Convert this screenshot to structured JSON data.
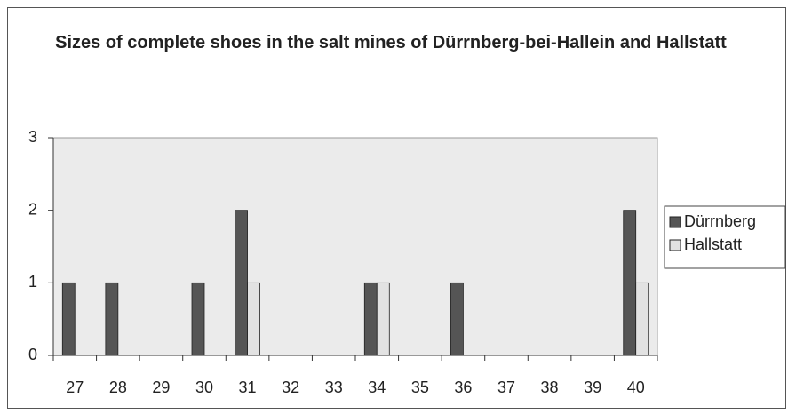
{
  "chart_data": {
    "type": "bar",
    "title": "Sizes of complete shoes in the salt mines of Dürrnberg-bei-Hallein and Hallstatt",
    "categories": [
      "27",
      "28",
      "29",
      "30",
      "31",
      "32",
      "33",
      "34",
      "35",
      "36",
      "37",
      "38",
      "39",
      "40"
    ],
    "series": [
      {
        "name": "Dürrnberg",
        "color": "#555555",
        "values": [
          1,
          1,
          0,
          1,
          2,
          0,
          0,
          1,
          0,
          1,
          0,
          0,
          0,
          2
        ]
      },
      {
        "name": "Hallstatt",
        "color": "#e2e2e2",
        "values": [
          0,
          0,
          0,
          0,
          1,
          0,
          0,
          1,
          0,
          0,
          0,
          0,
          0,
          1
        ]
      }
    ],
    "ylim": [
      0,
      3
    ],
    "yticks": [
      0,
      1,
      2,
      3
    ],
    "grid": false,
    "legend": "right"
  }
}
